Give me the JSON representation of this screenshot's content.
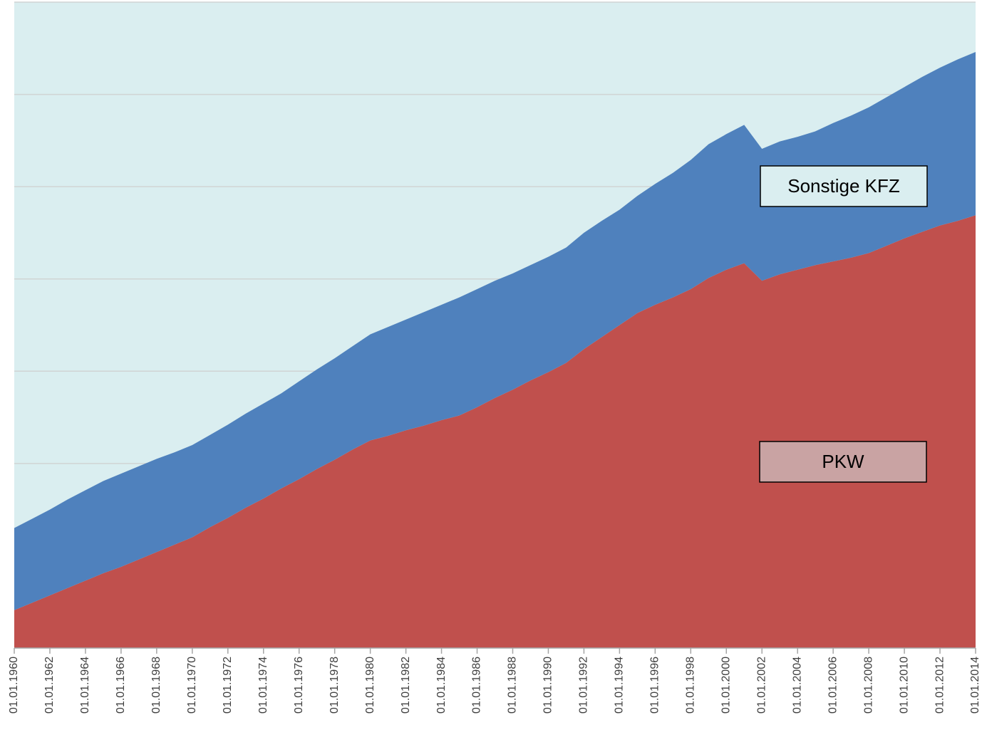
{
  "chart_data": {
    "type": "stacked_area",
    "categories": [
      "01.01.1960",
      null,
      "01.01.1962",
      null,
      "01.01.1964",
      null,
      "01.01.1966",
      null,
      "01.01.1968",
      null,
      "01.01.1970",
      null,
      "01.01.1972",
      null,
      "01.01.1974",
      null,
      "01.01.1976",
      null,
      "01.01.1978",
      null,
      "01.01.1980",
      null,
      "01.01.1982",
      null,
      "01.01.1984",
      null,
      "01.01.1986",
      null,
      "01.01.1988",
      null,
      "01.01.1990",
      null,
      "01.01.1992",
      null,
      "01.01.1994",
      null,
      "01.01.1996",
      null,
      "01.01.1998",
      null,
      "01.01.2000",
      null,
      "01.01.2002",
      null,
      "01.01.2004",
      null,
      "01.01.2006",
      null,
      "01.01.2008",
      null,
      "01.01.2010",
      null,
      "01.01.2012",
      null,
      "01.01.2014"
    ],
    "series": [
      {
        "name": "PKW",
        "color": "#c0504d",
        "legend_fill": "#c9a3a3",
        "values": [
          0.41,
          0.49,
          0.57,
          0.65,
          0.73,
          0.81,
          0.88,
          0.96,
          1.04,
          1.12,
          1.2,
          1.31,
          1.41,
          1.52,
          1.62,
          1.73,
          1.83,
          1.94,
          2.04,
          2.15,
          2.25,
          2.3,
          2.36,
          2.41,
          2.47,
          2.52,
          2.61,
          2.71,
          2.8,
          2.9,
          2.99,
          3.09,
          3.24,
          3.37,
          3.5,
          3.63,
          3.72,
          3.8,
          3.89,
          4.01,
          4.1,
          4.17,
          3.98,
          4.05,
          4.1,
          4.15,
          4.19,
          4.23,
          4.28,
          4.36,
          4.44,
          4.51,
          4.58,
          4.63,
          4.69
        ]
      },
      {
        "name": "Sonstige KFZ",
        "color": "#4f81bd",
        "legend_fill": "#daeef0",
        "values": [
          0.89,
          0.91,
          0.93,
          0.96,
          0.98,
          1.0,
          1.01,
          1.01,
          1.01,
          1.0,
          1.0,
          1.0,
          1.01,
          1.02,
          1.03,
          1.03,
          1.06,
          1.08,
          1.1,
          1.12,
          1.15,
          1.18,
          1.2,
          1.23,
          1.25,
          1.28,
          1.28,
          1.27,
          1.26,
          1.25,
          1.25,
          1.25,
          1.26,
          1.26,
          1.25,
          1.27,
          1.31,
          1.35,
          1.4,
          1.45,
          1.47,
          1.5,
          1.43,
          1.44,
          1.44,
          1.45,
          1.5,
          1.54,
          1.58,
          1.61,
          1.64,
          1.68,
          1.71,
          1.75,
          1.77
        ]
      }
    ],
    "ylim": [
      0,
      7
    ],
    "yticks": [
      0,
      1,
      2,
      3,
      4,
      5,
      6,
      7
    ],
    "grid": true,
    "plot_background": "#daeef0"
  }
}
